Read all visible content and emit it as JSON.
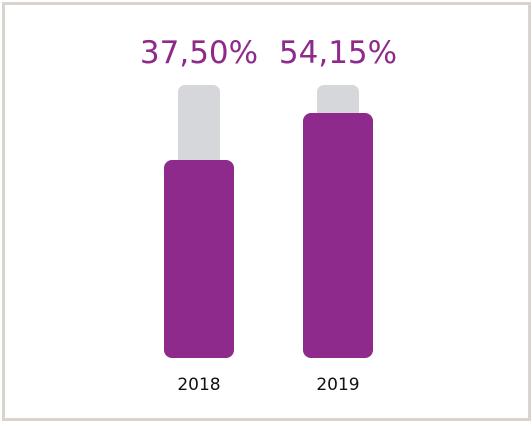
{
  "chart_data": {
    "type": "bar",
    "categories": [
      "2018",
      "2019"
    ],
    "series": [
      {
        "values": [
          37.5,
          54.15
        ],
        "value_labels": [
          "37,50%",
          "54,15%"
        ]
      }
    ],
    "title": "",
    "xlabel": "",
    "ylabel": "",
    "grid": false,
    "legend": "none",
    "colors": {
      "bar": "#8e2a8b",
      "track": "#d6d7db",
      "value_label": "#8e2a8b",
      "tick_label": "#111111",
      "frame": "#d9d4cc"
    }
  }
}
